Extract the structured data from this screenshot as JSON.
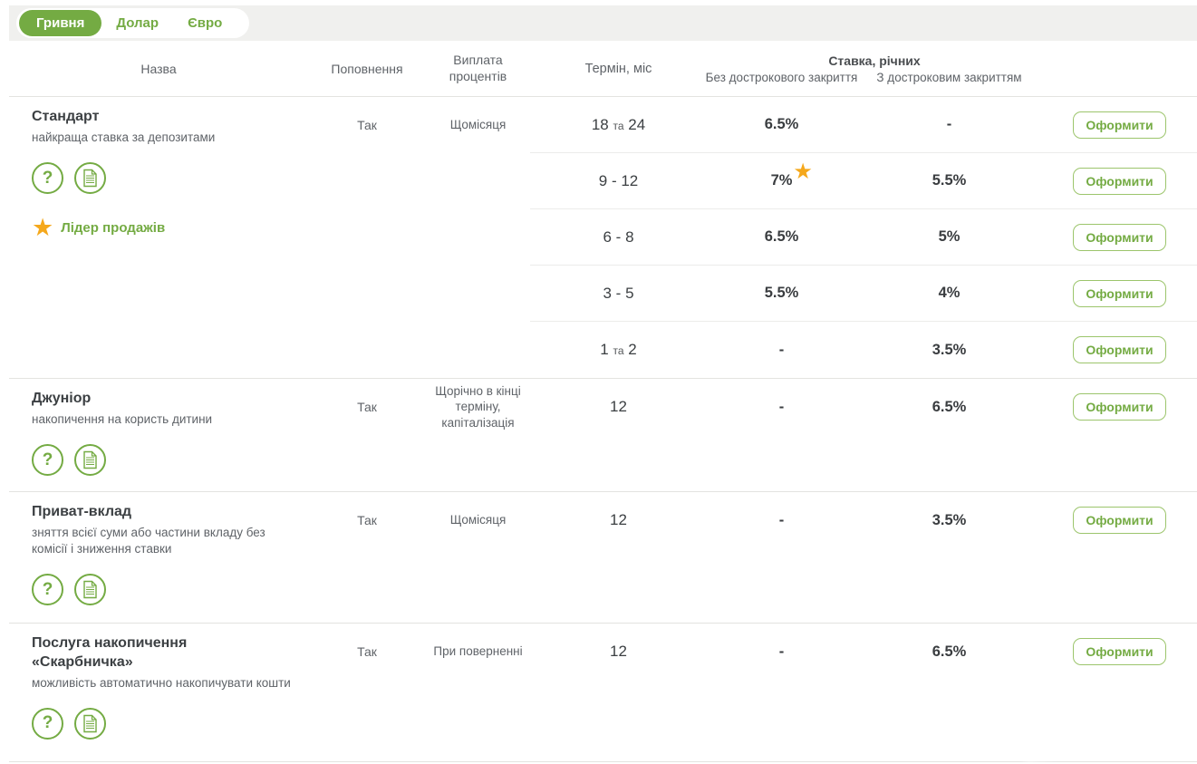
{
  "colors": {
    "green": "#74ab43",
    "star": "#f5a81c",
    "topbar_bg": "#f0f0ee"
  },
  "tabs": [
    {
      "id": "uah",
      "label": "Гривня",
      "active": true
    },
    {
      "id": "usd",
      "label": "Долар",
      "active": false
    },
    {
      "id": "eur",
      "label": "Євро",
      "active": false
    }
  ],
  "header": {
    "name": "Назва",
    "refill": "Поповнення",
    "payout": "Виплата процентів",
    "term": "Термін, міс",
    "rate_group": "Ставка, річних",
    "rate_no_early": "Без дострокового закриття",
    "rate_early": "З достроковим закриттям"
  },
  "apply_label": "Оформити",
  "icons": {
    "help": "question-mark-in-circle",
    "document": "document-in-circle",
    "star": "star"
  },
  "products": [
    {
      "name": "Стандарт",
      "description": "найкраща ставка за депозитами",
      "refill": "Так",
      "payout": "Щомісяця",
      "badge": "Лідер продажів",
      "rows": [
        {
          "term": "18 та 24",
          "no_early": "6.5%",
          "early": "-",
          "starred": false
        },
        {
          "term": "9 - 12",
          "no_early": "7%",
          "early": "5.5%",
          "starred": true
        },
        {
          "term": "6 - 8",
          "no_early": "6.5%",
          "early": "5%",
          "starred": false
        },
        {
          "term": "3 - 5",
          "no_early": "5.5%",
          "early": "4%",
          "starred": false
        },
        {
          "term": "1 та 2",
          "no_early": "-",
          "early": "3.5%",
          "starred": false
        }
      ]
    },
    {
      "name": "Джуніор",
      "description": "накопичення на користь дитини",
      "refill": "Так",
      "payout": "Щорічно в кінці терміну, капіталізація",
      "badge": null,
      "rows": [
        {
          "term": "12",
          "no_early": "-",
          "early": "6.5%",
          "starred": false
        }
      ]
    },
    {
      "name": "Приват-вклад",
      "description": "зняття всієї суми або частини вкладу без комісії і зниження ставки",
      "refill": "Так",
      "payout": "Щомісяця",
      "badge": null,
      "rows": [
        {
          "term": "12",
          "no_early": "-",
          "early": "3.5%",
          "starred": false
        }
      ]
    },
    {
      "name": "Послуга накопичення «Скарбничка»",
      "description": "можливість автоматично накопичувати кошти",
      "refill": "Так",
      "payout": "При поверненні",
      "badge": null,
      "rows": [
        {
          "term": "12",
          "no_early": "-",
          "early": "6.5%",
          "starred": false
        }
      ]
    }
  ]
}
